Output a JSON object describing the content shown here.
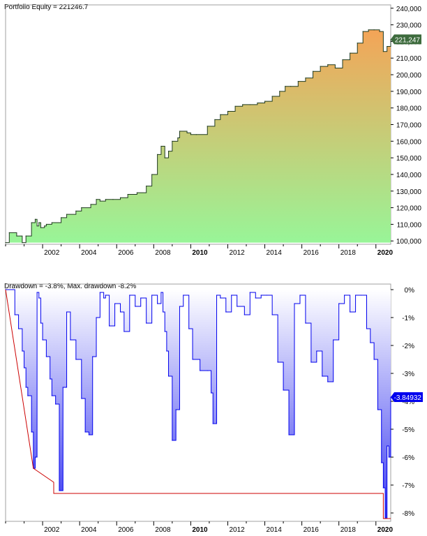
{
  "chart_data": [
    {
      "type": "area",
      "title": "Portfolio Equity = 221246.7",
      "ylim": [
        98000,
        242000
      ],
      "yticks": [
        100000,
        110000,
        120000,
        130000,
        140000,
        150000,
        160000,
        170000,
        180000,
        190000,
        200000,
        210000,
        220000,
        230000,
        240000
      ],
      "ytick_labels": [
        "100,000",
        "110,000",
        "120,000",
        "130,000",
        "140,000",
        "150,000",
        "160,000",
        "170,000",
        "180,000",
        "190,000",
        "200,000",
        "210,000",
        "220,000",
        "230,000",
        "240,000"
      ],
      "xlim": [
        2000.0,
        2020.8
      ],
      "xticks": [
        2002,
        2004,
        2006,
        2008,
        2010,
        2012,
        2014,
        2016,
        2018,
        2020
      ],
      "xtick_labels": [
        "2002",
        "2004",
        "2006",
        "2008",
        "2010",
        "2012",
        "2014",
        "2016",
        "2018",
        "2020"
      ],
      "xtick_bold": [
        "2010",
        "2020"
      ],
      "last_value_label": "221,247",
      "last_value": 221247,
      "grid": false,
      "gradient_colors": {
        "bottom": "#98f598",
        "top": "#f4a457"
      },
      "line_color": "#1f3a1f",
      "series": [
        {
          "x": [
            2000.0,
            2000.2,
            2000.6,
            2000.9,
            2001.1,
            2001.4,
            2001.6,
            2001.7,
            2001.8,
            2001.9,
            2002.1,
            2002.2,
            2002.5,
            2003.0,
            2003.3,
            2003.8,
            2004.1,
            2004.6,
            2004.9,
            2005.1,
            2005.4,
            2005.8,
            2006.2,
            2006.6,
            2007.1,
            2007.6,
            2007.9,
            2008.2,
            2008.4,
            2008.6,
            2008.8,
            2009.0,
            2009.3,
            2009.4,
            2009.8,
            2010.0,
            2010.3,
            2010.9,
            2011.3,
            2011.6,
            2012.0,
            2012.4,
            2012.8,
            2013.2,
            2013.6,
            2014.0,
            2014.4,
            2014.8,
            2015.1,
            2015.4,
            2015.8,
            2016.2,
            2016.6,
            2017.0,
            2017.4,
            2017.8,
            2018.2,
            2018.6,
            2019.0,
            2019.3,
            2019.6,
            2019.9,
            2020.2,
            2020.4,
            2020.6,
            2020.8
          ],
          "values": [
            99000,
            105000,
            103000,
            99000,
            103000,
            111000,
            113000,
            109000,
            111000,
            108000,
            109000,
            110000,
            111000,
            114000,
            116000,
            118000,
            120000,
            122000,
            125000,
            124000,
            125000,
            125000,
            126000,
            128000,
            129000,
            133000,
            140000,
            152000,
            157000,
            150000,
            154000,
            160000,
            162000,
            166000,
            165000,
            164000,
            164000,
            169000,
            173000,
            176000,
            178000,
            181000,
            182000,
            182000,
            183000,
            184000,
            187000,
            190000,
            193000,
            193000,
            196000,
            198000,
            202000,
            205000,
            206000,
            204000,
            209000,
            213000,
            219000,
            226000,
            227000,
            227000,
            226000,
            214000,
            217000,
            221247
          ]
        }
      ]
    },
    {
      "type": "area",
      "title": "Drawdown = -3.8%, Max. drawdown -8.2%",
      "ylim": [
        -8.3,
        0.2
      ],
      "yticks": [
        0,
        -1,
        -2,
        -3,
        -4,
        -5,
        -6,
        -7,
        -8
      ],
      "ytick_labels": [
        "0%",
        "-1%",
        "-2%",
        "-3%",
        "-4%",
        "-5%",
        "-6%",
        "-7%",
        "-8%"
      ],
      "xlim": [
        2000.0,
        2020.8
      ],
      "xticks": [
        2002,
        2004,
        2006,
        2008,
        2010,
        2012,
        2014,
        2016,
        2018,
        2020
      ],
      "xtick_labels": [
        "2002",
        "2004",
        "2006",
        "2008",
        "2010",
        "2012",
        "2014",
        "2016",
        "2018",
        "2020"
      ],
      "xtick_bold": [
        "2010",
        "2020"
      ],
      "last_value_label": "-3.84932",
      "last_value": -3.84932,
      "grid": false,
      "gradient_colors": {
        "top": "#ffffff",
        "bottom": "#3a3af0"
      },
      "line_color": "#0000ee",
      "max_drawdown_color": "#cc0000",
      "series": [
        {
          "name": "Drawdown",
          "x": [
            2000.0,
            2000.4,
            2000.5,
            2000.7,
            2000.9,
            2001.0,
            2001.1,
            2001.2,
            2001.4,
            2001.5,
            2001.6,
            2001.7,
            2001.8,
            2001.9,
            2002.0,
            2002.2,
            2002.4,
            2002.5,
            2002.7,
            2002.9,
            2003.1,
            2003.3,
            2003.5,
            2003.8,
            2004.1,
            2004.3,
            2004.5,
            2004.7,
            2004.9,
            2005.1,
            2005.3,
            2005.4,
            2005.6,
            2005.9,
            2006.2,
            2006.4,
            2006.7,
            2007.0,
            2007.3,
            2007.6,
            2007.9,
            2008.2,
            2008.4,
            2008.5,
            2008.6,
            2008.7,
            2008.8,
            2009.0,
            2009.2,
            2009.4,
            2009.6,
            2009.9,
            2010.1,
            2010.5,
            2010.9,
            2011.1,
            2011.2,
            2011.4,
            2011.6,
            2011.9,
            2012.2,
            2012.5,
            2012.9,
            2013.2,
            2013.5,
            2013.8,
            2014.1,
            2014.4,
            2014.7,
            2015.0,
            2015.3,
            2015.6,
            2015.9,
            2016.2,
            2016.5,
            2016.8,
            2017.1,
            2017.4,
            2017.7,
            2018.0,
            2018.3,
            2018.6,
            2018.9,
            2019.2,
            2019.5,
            2019.7,
            2019.9,
            2020.1,
            2020.3,
            2020.4,
            2020.5,
            2020.6,
            2020.7,
            2020.8
          ],
          "values": [
            0,
            0,
            -0.9,
            -1.4,
            -2.2,
            -2.8,
            -3.5,
            -3.8,
            -5.1,
            -6.4,
            -6.0,
            -0.1,
            -0.3,
            -1.2,
            -1.8,
            -2.4,
            -3.2,
            -3.8,
            -4.1,
            -7.2,
            -3.5,
            -0.8,
            -1.8,
            -2.5,
            -3.9,
            -5.1,
            -5.2,
            -2.4,
            -1.0,
            -0.1,
            -0.3,
            -0.2,
            -1.3,
            -0.5,
            -0.8,
            -1.5,
            -0.2,
            -0.6,
            -0.3,
            -1.2,
            -0.2,
            -0.5,
            -0.1,
            -0.8,
            -1.5,
            -2.2,
            -3.1,
            -5.4,
            -4.3,
            -0.6,
            -0.2,
            -1.4,
            -2.5,
            -2.9,
            -2.9,
            -3.7,
            -4.8,
            -0.2,
            -0.3,
            -0.8,
            -0.2,
            -0.6,
            -0.9,
            -0.1,
            -0.3,
            -0.2,
            -0.2,
            -0.9,
            -2.6,
            -3.6,
            -5.2,
            -0.5,
            -0.2,
            -1.2,
            -2.6,
            -2.2,
            -3.1,
            -3.3,
            -1.8,
            -0.5,
            -0.2,
            -0.8,
            -0.2,
            -0.2,
            -1.4,
            -1.9,
            -2.5,
            -4.3,
            -6.2,
            -7.1,
            -8.2,
            -5.6,
            -6.0,
            -3.84932
          ]
        }
      ],
      "max_drawdown_series": {
        "x": [
          2000.0,
          2001.5,
          2001.5,
          2002.6,
          2002.6,
          2020.4,
          2020.4,
          2020.8
        ],
        "values": [
          0,
          -6.4,
          -6.4,
          -6.9,
          -7.3,
          -7.3,
          -8.2,
          -8.2
        ]
      }
    }
  ]
}
